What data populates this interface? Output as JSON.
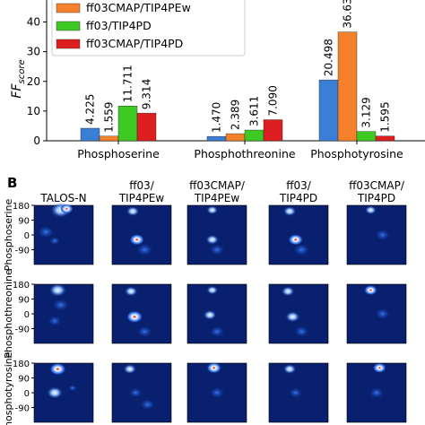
{
  "chart_data": [
    {
      "type": "bar",
      "categories": [
        "Phosphoserine",
        "Phosphothreonine",
        "Phosphotyrosine"
      ],
      "series": [
        {
          "name": "",
          "color": "#3a7fd5",
          "values": [
            4.225,
            1.47,
            20.498
          ]
        },
        {
          "name": "ff03CMAP/TIP4PEw",
          "color": "#f5822a",
          "values": [
            1.559,
            2.389,
            36.63
          ]
        },
        {
          "name": "ff03/TIP4PD",
          "color": "#3ec923",
          "values": [
            11.711,
            3.611,
            3.129
          ]
        },
        {
          "name": "ff03CMAP/TIP4PD",
          "color": "#dd1f1f",
          "values": [
            9.314,
            7.09,
            1.595
          ]
        }
      ],
      "value_labels": [
        [
          "4.225",
          "1.470",
          "20.498"
        ],
        [
          "1.559",
          "2.389",
          "36.63"
        ],
        [
          "11.711",
          "3.611",
          "3.129"
        ],
        [
          "9.314",
          "7.090",
          "1.595"
        ]
      ],
      "ylabel_main": "FF",
      "ylabel_sub": "score",
      "ylim": [
        0,
        48
      ],
      "yticks": [
        0,
        10,
        20,
        30,
        40
      ],
      "grid": false,
      "legend_position": "top-left"
    },
    {
      "type": "heatmap",
      "panel_label": "B",
      "column_headers": [
        [
          "TALOS-N"
        ],
        [
          "ff03/",
          "TIP4PEw"
        ],
        [
          "ff03CMAP/",
          "TIP4PEw"
        ],
        [
          "ff03/",
          "TIP4PD"
        ],
        [
          "ff03CMAP/",
          "TIP4PD"
        ]
      ],
      "row_labels": [
        "Phosphoserine",
        "Phosphothreonine",
        "Phosphotyrosine"
      ],
      "yticks": [
        180,
        90,
        0,
        -90
      ],
      "colormap": [
        "#08206e",
        "#1440b8",
        "#3f7ff0",
        "#ffffff",
        "#e02020"
      ]
    }
  ]
}
